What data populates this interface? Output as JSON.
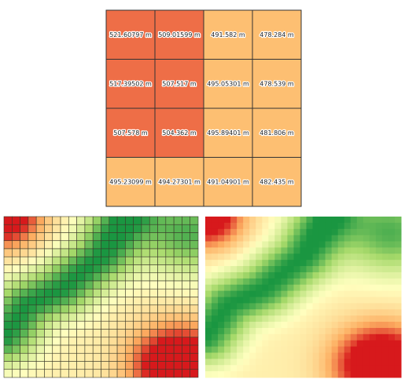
{
  "grid": {
    "rows": [
      [
        "521.60797 m",
        "509.01599 m",
        "491.582 m",
        "478.284 m"
      ],
      [
        "517.39502 m",
        "507.517 m",
        "495.05301 m",
        "478.539 m"
      ],
      [
        "507.578 m",
        "504.362 m",
        "495.89401 m",
        "481.806 m"
      ],
      [
        "495.23099 m",
        "494.27301 m",
        "491.04901 m",
        "482.435 m"
      ]
    ]
  }
}
